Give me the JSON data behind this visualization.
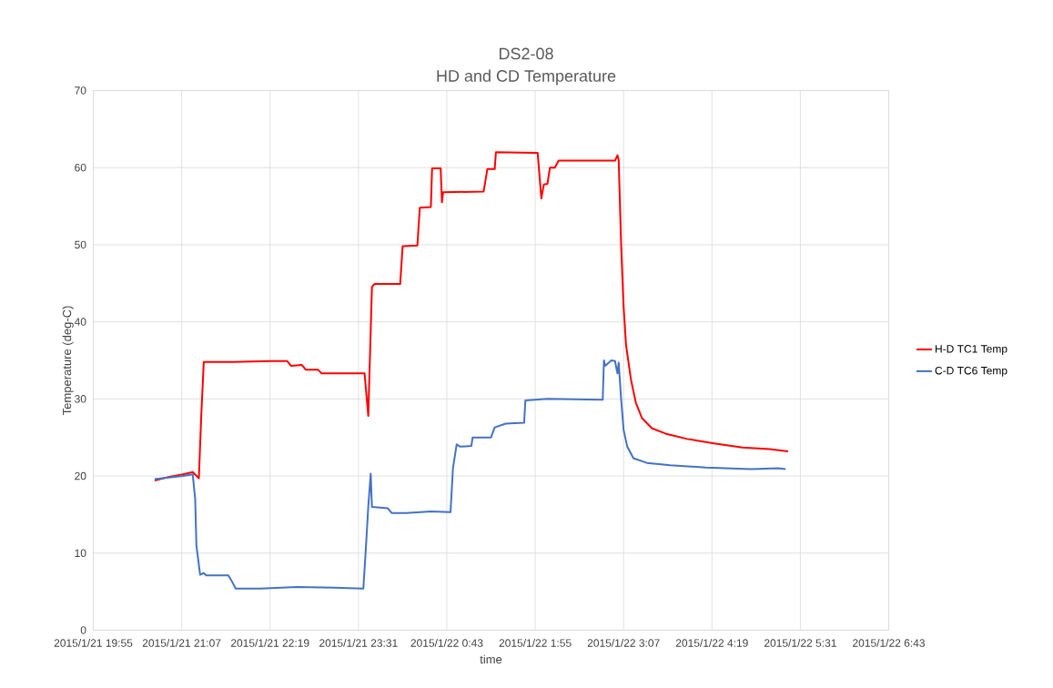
{
  "chart_data": {
    "type": "line",
    "title": "DS2-08",
    "subtitle": "HD and CD Temperature",
    "xlabel": "time",
    "ylabel": "Temperature (deg-C)",
    "xlim": [
      "2015-01-21T19:55",
      "2015-01-22T06:43"
    ],
    "xticks": [
      {
        "value": "2015-01-21T19:55",
        "label": "2015/1/21 19:55"
      },
      {
        "value": "2015-01-21T21:07",
        "label": "2015/1/21 21:07"
      },
      {
        "value": "2015-01-21T22:19",
        "label": "2015/1/21 22:19"
      },
      {
        "value": "2015-01-21T23:31",
        "label": "2015/1/21 23:31"
      },
      {
        "value": "2015-01-22T00:43",
        "label": "2015/1/22 0:43"
      },
      {
        "value": "2015-01-22T01:55",
        "label": "2015/1/22 1:55"
      },
      {
        "value": "2015-01-22T03:07",
        "label": "2015/1/22 3:07"
      },
      {
        "value": "2015-01-22T04:19",
        "label": "2015/1/22 4:19"
      },
      {
        "value": "2015-01-22T05:31",
        "label": "2015/1/22 5:31"
      },
      {
        "value": "2015-01-22T06:43",
        "label": "2015/1/22 6:43"
      }
    ],
    "ylim": [
      0,
      70
    ],
    "yticks": [
      0,
      10,
      20,
      30,
      40,
      50,
      60,
      70
    ],
    "grid": true,
    "legend": "right",
    "marker": "none",
    "line_style": "solid",
    "series": [
      {
        "name": "H-D TC1 Temp",
        "color": "#ff0000",
        "x": [
          "2015-01-21T20:45",
          "2015-01-21T20:57",
          "2015-01-21T21:08",
          "2015-01-21T21:16",
          "2015-01-21T21:21",
          "2015-01-21T21:23",
          "2015-01-21T21:25",
          "2015-01-21T21:49",
          "2015-01-21T22:19",
          "2015-01-21T22:33",
          "2015-01-21T22:36",
          "2015-01-21T22:45",
          "2015-01-21T22:48",
          "2015-01-21T22:58",
          "2015-01-21T23:01",
          "2015-01-21T23:36",
          "2015-01-21T23:39",
          "2015-01-21T23:42",
          "2015-01-21T23:44",
          "2015-01-22T00:05",
          "2015-01-22T00:07",
          "2015-01-22T00:19",
          "2015-01-22T00:21",
          "2015-01-22T00:30",
          "2015-01-22T00:31",
          "2015-01-22T00:38",
          "2015-01-22T00:39",
          "2015-01-22T00:40",
          "2015-01-22T01:13",
          "2015-01-22T01:16",
          "2015-01-22T01:22",
          "2015-01-22T01:23",
          "2015-01-22T01:57",
          "2015-01-22T02:00",
          "2015-01-22T02:02",
          "2015-01-22T02:05",
          "2015-01-22T02:07",
          "2015-01-22T02:11",
          "2015-01-22T02:14",
          "2015-01-22T03:00",
          "2015-01-22T03:02",
          "2015-01-22T03:03",
          "2015-01-22T03:05",
          "2015-01-22T03:07",
          "2015-01-22T03:09",
          "2015-01-22T03:13",
          "2015-01-22T03:17",
          "2015-01-22T03:22",
          "2015-01-22T03:30",
          "2015-01-22T03:41",
          "2015-01-22T03:59",
          "2015-01-22T04:22",
          "2015-01-22T04:44",
          "2015-01-22T05:06",
          "2015-01-22T05:21"
        ],
        "values": [
          19.4,
          19.9,
          20.2,
          20.5,
          19.7,
          28,
          34.8,
          34.8,
          34.9,
          34.9,
          34.3,
          34.4,
          33.8,
          33.8,
          33.3,
          33.3,
          27.8,
          44.5,
          44.9,
          44.9,
          49.8,
          49.9,
          54.8,
          54.9,
          59.9,
          59.9,
          55.5,
          56.8,
          56.9,
          59.8,
          59.8,
          62,
          61.9,
          56,
          57.8,
          57.9,
          60,
          60,
          60.9,
          60.9,
          61.6,
          61,
          50,
          42,
          37,
          32.5,
          29.5,
          27.5,
          26.2,
          25.5,
          24.8,
          24.2,
          23.7,
          23.5,
          23.2
        ]
      },
      {
        "name": "C-D TC6 Temp",
        "color": "#4472c4",
        "x": [
          "2015-01-21T20:45",
          "2015-01-21T21:08",
          "2015-01-21T21:16",
          "2015-01-21T21:18",
          "2015-01-21T21:19",
          "2015-01-21T21:22",
          "2015-01-21T21:25",
          "2015-01-21T21:27",
          "2015-01-21T21:45",
          "2015-01-21T21:48",
          "2015-01-21T21:51",
          "2015-01-21T22:11",
          "2015-01-21T22:41",
          "2015-01-21T23:11",
          "2015-01-21T23:35",
          "2015-01-21T23:37",
          "2015-01-21T23:39",
          "2015-01-21T23:41",
          "2015-01-21T23:42",
          "2015-01-21T23:55",
          "2015-01-21T23:58",
          "2015-01-22T00:10",
          "2015-01-22T00:30",
          "2015-01-22T00:46",
          "2015-01-22T00:48",
          "2015-01-22T00:51",
          "2015-01-22T00:54",
          "2015-01-22T01:03",
          "2015-01-22T01:04",
          "2015-01-22T01:19",
          "2015-01-22T01:22",
          "2015-01-22T01:31",
          "2015-01-22T01:46",
          "2015-01-22T01:47",
          "2015-01-22T02:05",
          "2015-01-22T02:50",
          "2015-01-22T02:51",
          "2015-01-22T02:52",
          "2015-01-22T02:57",
          "2015-01-22T03:00",
          "2015-01-22T03:02",
          "2015-01-22T03:03",
          "2015-01-22T03:05",
          "2015-01-22T03:07",
          "2015-01-22T03:10",
          "2015-01-22T03:15",
          "2015-01-22T03:26",
          "2015-01-22T03:45",
          "2015-01-22T04:14",
          "2015-01-22T04:51",
          "2015-01-22T05:13",
          "2015-01-22T05:19"
        ],
        "values": [
          19.6,
          20,
          20.2,
          17,
          11,
          7.2,
          7.4,
          7.1,
          7.1,
          6.3,
          5.4,
          5.4,
          5.6,
          5.5,
          5.4,
          10.5,
          16,
          20.3,
          16,
          15.8,
          15.2,
          15.2,
          15.4,
          15.3,
          21,
          24.1,
          23.8,
          23.9,
          25,
          25,
          26.3,
          26.8,
          26.9,
          29.8,
          30,
          29.9,
          35,
          34.3,
          35,
          34.9,
          33.3,
          34.7,
          30,
          26,
          23.8,
          22.3,
          21.7,
          21.4,
          21.1,
          20.9,
          21,
          20.9
        ]
      }
    ]
  }
}
